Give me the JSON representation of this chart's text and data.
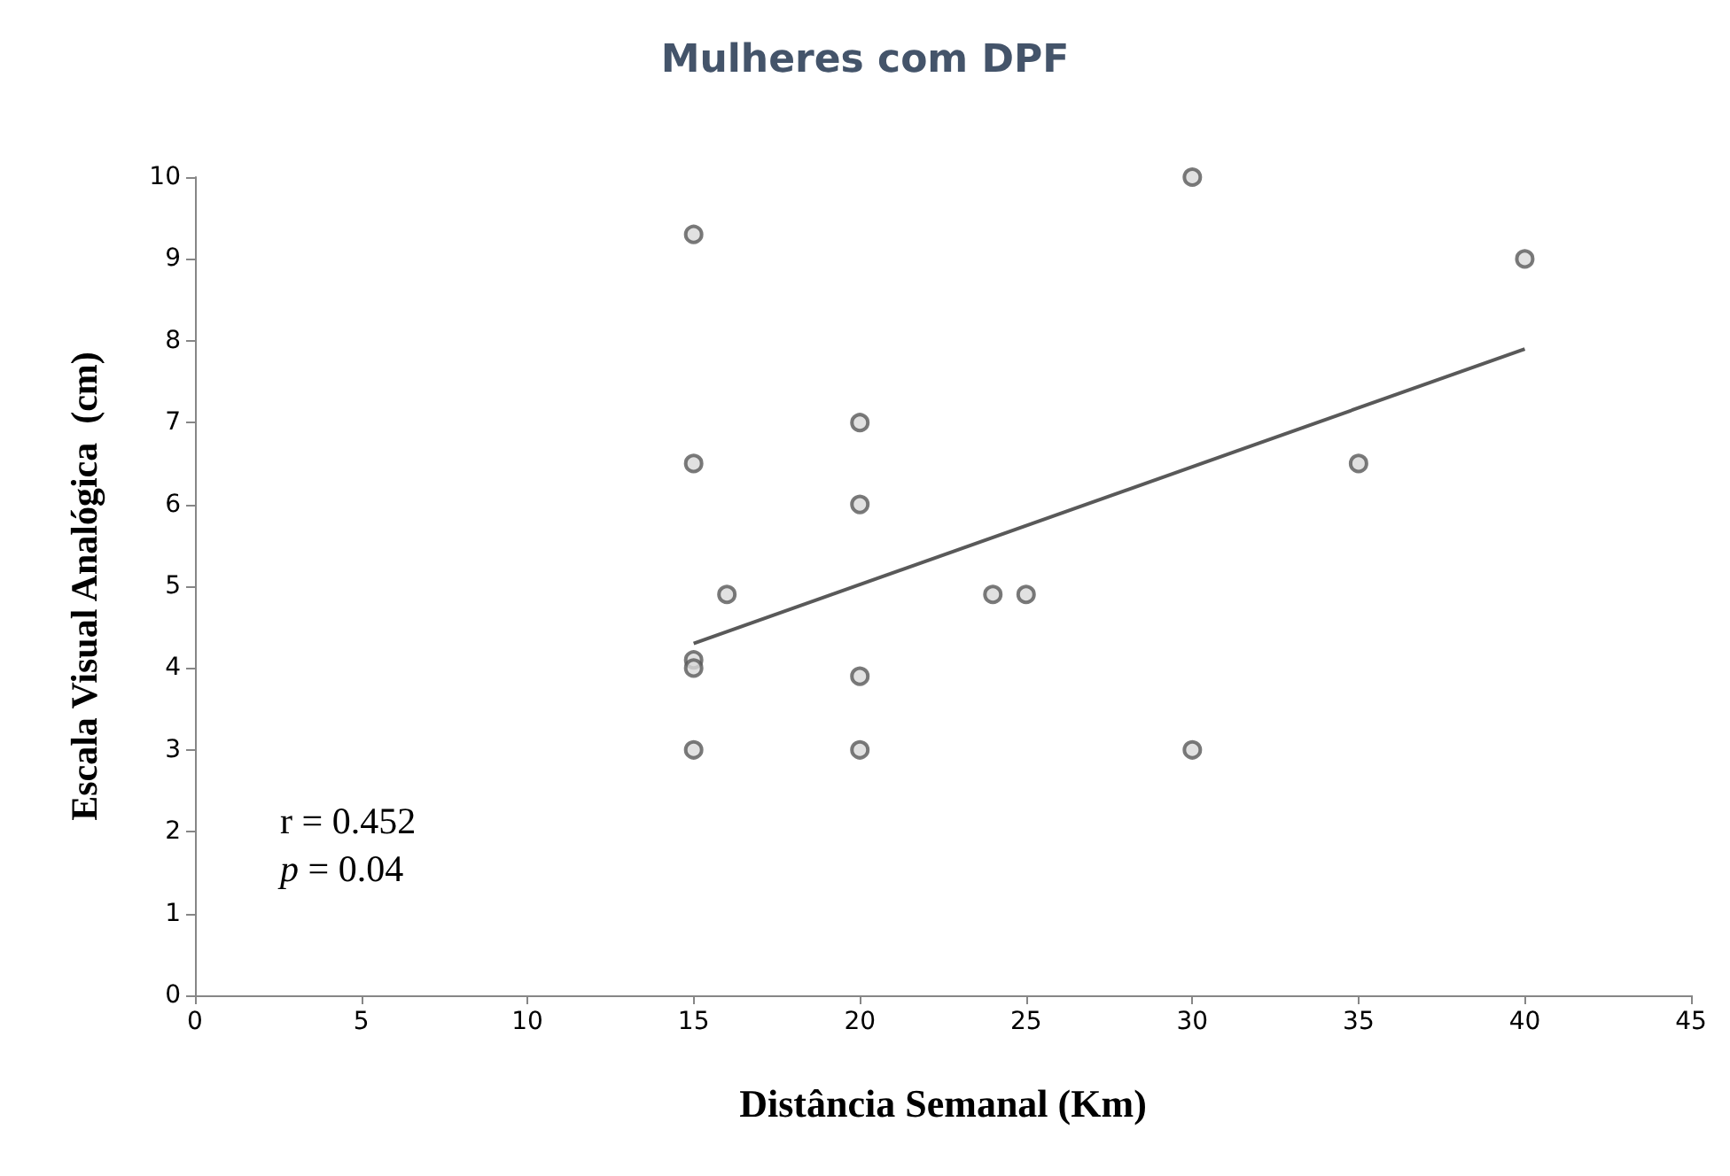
{
  "chart_data": {
    "type": "scatter",
    "title": "Mulheres com DPF",
    "xlabel": "Distância Semanal (Km)",
    "ylabel": "Escala Visual Analógica  (cm)",
    "series": [
      {
        "color": "#595959",
        "x": [
          15,
          15,
          15,
          15,
          15,
          16,
          20,
          20,
          20,
          20,
          24,
          25,
          30,
          30,
          35,
          40
        ],
        "values": [
          9.3,
          6.5,
          4.1,
          4.0,
          3.0,
          4.9,
          7.0,
          6.0,
          3.9,
          3.0,
          4.9,
          4.9,
          10.0,
          3.0,
          6.5,
          9.0
        ]
      },
      {
        "type": "line",
        "color": "#595959",
        "x": [
          15,
          40
        ],
        "values": [
          4.3,
          7.9
        ],
        "marker": "none"
      }
    ],
    "xlim": [
      0,
      45
    ],
    "xticks": [
      0,
      5,
      10,
      15,
      20,
      25,
      30,
      35,
      40,
      45
    ],
    "ylim": [
      0,
      10
    ],
    "yticks": [
      0,
      1,
      2,
      3,
      4,
      5,
      6,
      7,
      8,
      9,
      10
    ],
    "grid": false,
    "marker": "circle",
    "annotations": [
      "r = 0.452",
      "p = 0.04"
    ]
  }
}
